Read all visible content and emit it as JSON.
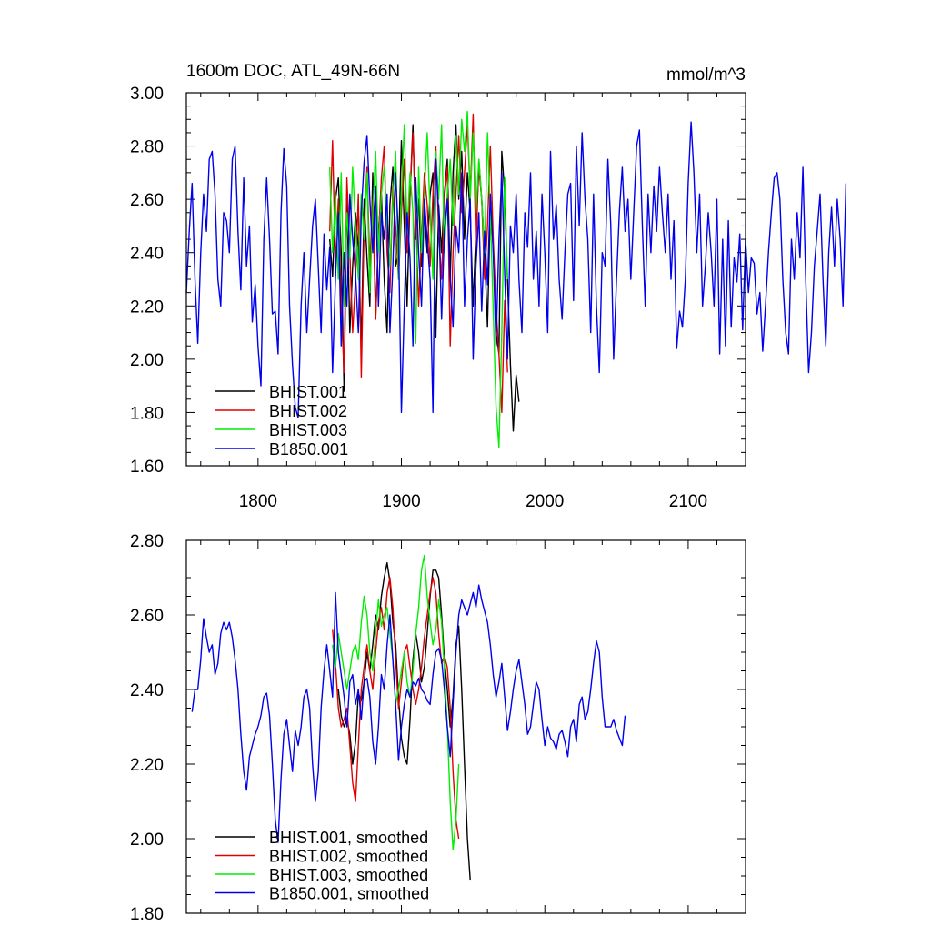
{
  "chart_data": [
    {
      "type": "line",
      "title": "1600m DOC, ATL_49N-66N",
      "units": "mmol/m^3",
      "xlabel": "",
      "ylabel": "",
      "xlim": [
        1750,
        2140
      ],
      "ylim": [
        1.6,
        3.0
      ],
      "x_ticks": [
        1800,
        1900,
        2000,
        2100
      ],
      "x_tick_labels": [
        "1800",
        "1900",
        "2000",
        "2100"
      ],
      "y_ticks": [
        1.6,
        1.8,
        2.0,
        2.2,
        2.4,
        2.6,
        2.8,
        3.0
      ],
      "y_tick_labels": [
        "1.60",
        "1.80",
        "2.00",
        "2.20",
        "2.40",
        "2.60",
        "2.80",
        "3.00"
      ],
      "legend_position": "bottom-left",
      "series": [
        {
          "name": "BHIST.001",
          "color": "#000000",
          "x_start": 1850,
          "x_step": 2,
          "values": [
            2.45,
            2.31,
            2.6,
            2.68,
            2.4,
            1.88,
            2.62,
            2.1,
            2.35,
            2.55,
            2.42,
            2.05,
            2.6,
            2.38,
            2.2,
            2.7,
            2.15,
            2.48,
            2.62,
            2.3,
            2.1,
            2.58,
            2.72,
            2.35,
            2.4,
            2.82,
            2.5,
            2.2,
            2.62,
            2.88,
            2.45,
            2.6,
            2.35,
            2.55,
            2.4,
            2.62,
            2.7,
            2.08,
            2.58,
            2.4,
            2.62,
            2.75,
            2.3,
            2.7,
            2.88,
            2.6,
            2.78,
            2.45,
            2.7,
            2.55,
            2.2,
            2.48,
            2.72,
            2.6,
            2.4,
            2.12,
            2.58,
            2.42,
            2.1,
            2.02,
            2.78,
            2.62,
            2.3,
            1.98,
            1.73,
            1.94,
            1.84
          ]
        },
        {
          "name": "BHIST.002",
          "color": "#e00000",
          "x_start": 1850,
          "x_step": 2,
          "values": [
            2.48,
            2.82,
            2.35,
            2.6,
            2.2,
            1.95,
            2.68,
            2.4,
            2.1,
            2.3,
            2.62,
            1.93,
            2.5,
            2.72,
            2.35,
            2.6,
            2.15,
            2.45,
            2.68,
            2.8,
            2.4,
            2.25,
            2.65,
            2.5,
            2.3,
            2.55,
            2.75,
            2.4,
            2.62,
            2.85,
            2.55,
            2.2,
            2.45,
            2.7,
            2.58,
            2.35,
            2.62,
            2.8,
            2.48,
            2.3,
            2.6,
            2.72,
            2.05,
            2.4,
            2.62,
            2.84,
            2.55,
            2.7,
            2.88,
            2.62,
            2.92,
            2.4,
            2.75,
            2.6,
            2.3,
            2.5,
            2.8,
            2.45,
            2.2,
            2.02,
            1.8,
            2.22,
            1.95
          ]
        },
        {
          "name": "BHIST.003",
          "color": "#00ee00",
          "x_start": 1850,
          "x_step": 2,
          "values": [
            2.72,
            2.4,
            2.62,
            2.3,
            2.7,
            2.2,
            2.55,
            2.38,
            2.72,
            2.5,
            2.3,
            2.62,
            2.45,
            2.7,
            2.25,
            2.55,
            2.78,
            2.4,
            2.62,
            2.72,
            2.5,
            2.35,
            2.6,
            2.78,
            2.3,
            2.62,
            2.88,
            2.48,
            2.7,
            2.55,
            2.06,
            2.72,
            2.4,
            2.62,
            2.85,
            2.55,
            2.3,
            2.78,
            2.6,
            2.88,
            2.4,
            2.62,
            2.75,
            2.5,
            2.84,
            2.62,
            2.9,
            2.78,
            2.93,
            2.6,
            2.85,
            2.55,
            2.75,
            2.6,
            2.4,
            2.85,
            2.55,
            2.18,
            1.82,
            1.67,
            2.1,
            2.68,
            2.3
          ]
        },
        {
          "name": "B1850.001",
          "color": "#0000ee",
          "x_start": 1750,
          "x_step": 2,
          "values": [
            2.25,
            2.48,
            2.66,
            2.3,
            2.06,
            2.4,
            2.62,
            2.48,
            2.75,
            2.78,
            2.62,
            2.3,
            2.2,
            2.55,
            2.52,
            2.4,
            2.75,
            2.8,
            2.48,
            2.26,
            2.68,
            2.35,
            2.5,
            2.14,
            2.28,
            2.05,
            1.9,
            2.45,
            2.68,
            2.45,
            2.17,
            2.18,
            2.02,
            2.55,
            2.79,
            2.65,
            2.2,
            1.98,
            1.82,
            1.78,
            2.2,
            2.4,
            2.1,
            2.3,
            2.5,
            2.6,
            2.35,
            2.1,
            2.47,
            2.26,
            2.42,
            1.95,
            2.3,
            2.55,
            2.05,
            2.4,
            2.2,
            2.62,
            2.45,
            2.32,
            2.1,
            2.55,
            2.74,
            2.84,
            2.6,
            2.4,
            2.65,
            2.2,
            2.55,
            2.45,
            2.62,
            2.1,
            2.35,
            2.7,
            2.45,
            1.8,
            2.2,
            2.55,
            2.38,
            2.05,
            2.68,
            2.4,
            2.2,
            2.6,
            2.45,
            2.3,
            1.8,
            2.75,
            2.55,
            2.15,
            2.48,
            2.6,
            2.3,
            2.12,
            2.5,
            2.4,
            2.7,
            2.2,
            2.45,
            2.6,
            2.0,
            2.35,
            2.55,
            2.18,
            2.48,
            2.28,
            2.62,
            2.4,
            2.05,
            2.45,
            2.7,
            2.32,
            2.0,
            2.5,
            2.4,
            2.62,
            2.3,
            2.1,
            2.55,
            2.42,
            2.7,
            2.3,
            2.48,
            2.2,
            2.62,
            2.4,
            2.1,
            2.78,
            2.45,
            2.58,
            2.3,
            2.15,
            2.4,
            2.62,
            2.66,
            2.22,
            2.8,
            2.5,
            2.85,
            2.6,
            2.45,
            2.1,
            2.62,
            2.2,
            1.95,
            2.4,
            2.35,
            2.75,
            2.5,
            2.0,
            2.3,
            2.55,
            2.72,
            2.48,
            2.6,
            2.3,
            2.55,
            2.8,
            2.86,
            2.5,
            2.2,
            2.62,
            2.4,
            2.65,
            2.48,
            2.72,
            2.55,
            2.4,
            2.62,
            2.3,
            2.52,
            2.04,
            2.18,
            2.12,
            2.3,
            2.66,
            2.89,
            2.7,
            2.4,
            2.62,
            2.2,
            2.35,
            2.55,
            2.4,
            2.2,
            2.6,
            2.02,
            2.45,
            2.05,
            2.52,
            2.12,
            2.38,
            2.29,
            2.47,
            2.11,
            2.45,
            2.25,
            2.38,
            2.36,
            2.17,
            2.25,
            2.03,
            2.21,
            2.4,
            2.55,
            2.68,
            2.7,
            2.6,
            2.3,
            2.1,
            2.02,
            2.45,
            2.3,
            2.55,
            2.38,
            2.72,
            2.3,
            1.95,
            2.1,
            2.35,
            2.48,
            2.62,
            2.3,
            2.05,
            2.4,
            2.57,
            2.35,
            2.6,
            2.45,
            2.2,
            2.66
          ]
        }
      ]
    },
    {
      "type": "line",
      "title": "",
      "xlabel": "",
      "ylabel": "",
      "xlim": [
        1750,
        2140
      ],
      "ylim": [
        1.8,
        2.8
      ],
      "x_ticks": [
        1800,
        1900,
        2000,
        2100
      ],
      "y_ticks": [
        1.8,
        2.0,
        2.2,
        2.4,
        2.6,
        2.8
      ],
      "y_tick_labels": [
        "1.80",
        "2.00",
        "2.20",
        "2.40",
        "2.60",
        "2.80"
      ],
      "legend_position": "bottom-left",
      "series": [
        {
          "name": "BHIST.001, smoothed",
          "color": "#000000",
          "x_start": 1856,
          "x_step": 2,
          "values": [
            2.4,
            2.33,
            2.3,
            2.32,
            2.28,
            2.2,
            2.26,
            2.39,
            2.37,
            2.42,
            2.5,
            2.45,
            2.52,
            2.6,
            2.56,
            2.65,
            2.7,
            2.74,
            2.69,
            2.58,
            2.52,
            2.38,
            2.27,
            2.22,
            2.2,
            2.32,
            2.48,
            2.55,
            2.5,
            2.42,
            2.46,
            2.55,
            2.65,
            2.72,
            2.72,
            2.7,
            2.6,
            2.48,
            2.4,
            2.3,
            2.38,
            2.52,
            2.57,
            2.4,
            2.2,
            2.0,
            1.89
          ]
        },
        {
          "name": "BHIST.002, smoothed",
          "color": "#e00000",
          "x_start": 1852,
          "x_step": 2,
          "values": [
            2.56,
            2.47,
            2.35,
            2.3,
            2.32,
            2.35,
            2.25,
            2.15,
            2.1,
            2.25,
            2.4,
            2.46,
            2.52,
            2.45,
            2.4,
            2.5,
            2.58,
            2.62,
            2.56,
            2.66,
            2.7,
            2.62,
            2.48,
            2.35,
            2.42,
            2.5,
            2.52,
            2.46,
            2.4,
            2.36,
            2.4,
            2.46,
            2.54,
            2.6,
            2.66,
            2.7,
            2.66,
            2.55,
            2.47,
            2.49,
            2.46,
            2.35,
            2.18,
            2.05,
            2.0
          ]
        },
        {
          "name": "BHIST.003, smoothed",
          "color": "#00ee00",
          "x_start": 1852,
          "x_step": 2,
          "values": [
            2.52,
            2.46,
            2.55,
            2.5,
            2.45,
            2.4,
            2.45,
            2.5,
            2.52,
            2.48,
            2.58,
            2.65,
            2.6,
            2.5,
            2.45,
            2.55,
            2.64,
            2.57,
            2.6,
            2.62,
            2.55,
            2.48,
            2.36,
            2.4,
            2.45,
            2.5,
            2.42,
            2.38,
            2.45,
            2.55,
            2.62,
            2.72,
            2.76,
            2.65,
            2.58,
            2.52,
            2.56,
            2.64,
            2.58,
            2.45,
            2.3,
            2.1,
            1.97,
            2.05,
            2.2
          ]
        },
        {
          "name": "B1850.001, smoothed",
          "color": "#0000ee",
          "x_start": 1754,
          "x_step": 2,
          "values": [
            2.34,
            2.4,
            2.4,
            2.48,
            2.59,
            2.54,
            2.5,
            2.52,
            2.44,
            2.47,
            2.55,
            2.58,
            2.56,
            2.58,
            2.54,
            2.48,
            2.4,
            2.28,
            2.18,
            2.13,
            2.22,
            2.25,
            2.28,
            2.3,
            2.33,
            2.38,
            2.39,
            2.33,
            2.2,
            2.05,
            1.99,
            2.16,
            2.28,
            2.32,
            2.25,
            2.18,
            2.29,
            2.25,
            2.3,
            2.38,
            2.4,
            2.35,
            2.2,
            2.1,
            2.18,
            2.35,
            2.45,
            2.52,
            2.45,
            2.38,
            2.66,
            2.5,
            2.44,
            2.38,
            2.3,
            2.42,
            2.44,
            2.36,
            2.4,
            2.32,
            2.42,
            2.43,
            2.38,
            2.26,
            2.2,
            2.3,
            2.44,
            2.4,
            2.52,
            2.6,
            2.48,
            2.36,
            2.21,
            2.3,
            2.36,
            2.4,
            2.38,
            2.42,
            2.41,
            2.43,
            2.4,
            2.39,
            2.37,
            2.36,
            2.44,
            2.5,
            2.51,
            2.48,
            2.4,
            2.3,
            2.22,
            2.36,
            2.5,
            2.6,
            2.64,
            2.62,
            2.6,
            2.63,
            2.66,
            2.62,
            2.68,
            2.64,
            2.61,
            2.58,
            2.52,
            2.44,
            2.38,
            2.42,
            2.47,
            2.38,
            2.29,
            2.34,
            2.4,
            2.45,
            2.48,
            2.42,
            2.36,
            2.28,
            2.3,
            2.36,
            2.42,
            2.4,
            2.32,
            2.25,
            2.3,
            2.27,
            2.26,
            2.24,
            2.28,
            2.29,
            2.26,
            2.22,
            2.3,
            2.32,
            2.26,
            2.36,
            2.38,
            2.32,
            2.34,
            2.4,
            2.47,
            2.53,
            2.5,
            2.38,
            2.3,
            2.3,
            2.3,
            2.32,
            2.29,
            2.27,
            2.25,
            2.33
          ]
        }
      ]
    }
  ],
  "colors": {
    "axis": "#000000",
    "background": "#ffffff"
  }
}
